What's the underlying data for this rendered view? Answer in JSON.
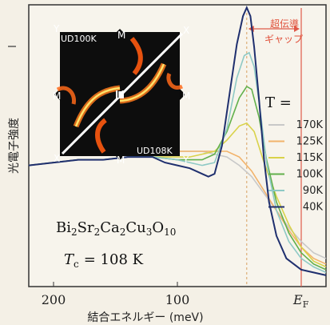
{
  "chart_data": {
    "type": "line",
    "title": "",
    "xlabel": "結合エネルギー (meV)",
    "ylabel": "光電子強度",
    "xlim": [
      220,
      -20
    ],
    "ylim": [
      0,
      1
    ],
    "x_ticks": [
      200,
      100
    ],
    "fermi_label": "E",
    "fermi_sub": "F",
    "fermi_x": 0,
    "gap_note": [
      "超伝導",
      "ギャップ"
    ],
    "legend_title": "T =",
    "material": {
      "parts": [
        [
          "Bi",
          "2"
        ],
        [
          "Sr",
          "2"
        ],
        [
          "Ca",
          "2"
        ],
        [
          "Cu",
          "3"
        ],
        [
          "O",
          "10"
        ]
      ]
    },
    "tc": {
      "sym": "T",
      "sub": "c",
      "value": "= 108 K"
    },
    "inset": {
      "corner_labels": [
        "Y",
        "X",
        "X",
        "Y"
      ],
      "m_labels": [
        "M",
        "M",
        "M",
        "M"
      ],
      "gamma": "Γ",
      "ud_labels": [
        "UD100K",
        "UD108K"
      ]
    },
    "series": [
      {
        "name": "170K",
        "color": "#c8c8c8",
        "points": [
          [
            220,
            0.43
          ],
          [
            200,
            0.44
          ],
          [
            180,
            0.45
          ],
          [
            160,
            0.45
          ],
          [
            140,
            0.46
          ],
          [
            120,
            0.47
          ],
          [
            100,
            0.48
          ],
          [
            90,
            0.48
          ],
          [
            80,
            0.48
          ],
          [
            70,
            0.47
          ],
          [
            60,
            0.46
          ],
          [
            50,
            0.43
          ],
          [
            40,
            0.39
          ],
          [
            30,
            0.33
          ],
          [
            20,
            0.27
          ],
          [
            10,
            0.21
          ],
          [
            0,
            0.16
          ],
          [
            -10,
            0.12
          ],
          [
            -20,
            0.1
          ]
        ]
      },
      {
        "name": "125K",
        "color": "#f2b36b",
        "points": [
          [
            220,
            0.43
          ],
          [
            200,
            0.44
          ],
          [
            180,
            0.45
          ],
          [
            160,
            0.45
          ],
          [
            140,
            0.46
          ],
          [
            120,
            0.47
          ],
          [
            100,
            0.48
          ],
          [
            90,
            0.48
          ],
          [
            80,
            0.48
          ],
          [
            70,
            0.48
          ],
          [
            60,
            0.48
          ],
          [
            50,
            0.46
          ],
          [
            40,
            0.41
          ],
          [
            30,
            0.34
          ],
          [
            20,
            0.27
          ],
          [
            10,
            0.2
          ],
          [
            0,
            0.14
          ],
          [
            -10,
            0.1
          ],
          [
            -20,
            0.08
          ]
        ]
      },
      {
        "name": "115K",
        "color": "#d9d24a",
        "points": [
          [
            220,
            0.43
          ],
          [
            200,
            0.44
          ],
          [
            180,
            0.45
          ],
          [
            160,
            0.45
          ],
          [
            140,
            0.46
          ],
          [
            120,
            0.46
          ],
          [
            100,
            0.46
          ],
          [
            90,
            0.46
          ],
          [
            80,
            0.47
          ],
          [
            70,
            0.48
          ],
          [
            60,
            0.52
          ],
          [
            50,
            0.57
          ],
          [
            44,
            0.58
          ],
          [
            38,
            0.55
          ],
          [
            30,
            0.44
          ],
          [
            20,
            0.32
          ],
          [
            10,
            0.22
          ],
          [
            0,
            0.14
          ],
          [
            -10,
            0.09
          ],
          [
            -20,
            0.07
          ]
        ]
      },
      {
        "name": "100K",
        "color": "#62b04b",
        "points": [
          [
            220,
            0.43
          ],
          [
            200,
            0.44
          ],
          [
            180,
            0.45
          ],
          [
            160,
            0.45
          ],
          [
            140,
            0.46
          ],
          [
            120,
            0.46
          ],
          [
            100,
            0.45
          ],
          [
            90,
            0.45
          ],
          [
            80,
            0.45
          ],
          [
            70,
            0.47
          ],
          [
            60,
            0.55
          ],
          [
            50,
            0.67
          ],
          [
            44,
            0.71
          ],
          [
            40,
            0.7
          ],
          [
            34,
            0.6
          ],
          [
            28,
            0.45
          ],
          [
            20,
            0.3
          ],
          [
            10,
            0.19
          ],
          [
            0,
            0.12
          ],
          [
            -10,
            0.08
          ],
          [
            -20,
            0.06
          ]
        ]
      },
      {
        "name": "90K",
        "color": "#8ec9c5",
        "points": [
          [
            220,
            0.43
          ],
          [
            200,
            0.44
          ],
          [
            180,
            0.45
          ],
          [
            160,
            0.45
          ],
          [
            140,
            0.46
          ],
          [
            120,
            0.46
          ],
          [
            100,
            0.45
          ],
          [
            90,
            0.44
          ],
          [
            80,
            0.43
          ],
          [
            70,
            0.44
          ],
          [
            60,
            0.56
          ],
          [
            52,
            0.74
          ],
          [
            46,
            0.82
          ],
          [
            42,
            0.83
          ],
          [
            38,
            0.78
          ],
          [
            33,
            0.62
          ],
          [
            28,
            0.44
          ],
          [
            20,
            0.27
          ],
          [
            10,
            0.16
          ],
          [
            0,
            0.1
          ],
          [
            -10,
            0.07
          ],
          [
            -20,
            0.05
          ]
        ]
      },
      {
        "name": "40K",
        "color": "#1f2f6e",
        "points": [
          [
            220,
            0.43
          ],
          [
            200,
            0.44
          ],
          [
            180,
            0.45
          ],
          [
            160,
            0.45
          ],
          [
            140,
            0.46
          ],
          [
            120,
            0.46
          ],
          [
            110,
            0.44
          ],
          [
            100,
            0.43
          ],
          [
            90,
            0.42
          ],
          [
            85,
            0.41
          ],
          [
            80,
            0.4
          ],
          [
            75,
            0.39
          ],
          [
            70,
            0.4
          ],
          [
            64,
            0.5
          ],
          [
            58,
            0.68
          ],
          [
            52,
            0.86
          ],
          [
            47,
            0.96
          ],
          [
            44,
            0.99
          ],
          [
            41,
            0.96
          ],
          [
            38,
            0.85
          ],
          [
            34,
            0.66
          ],
          [
            30,
            0.45
          ],
          [
            26,
            0.3
          ],
          [
            20,
            0.18
          ],
          [
            12,
            0.1
          ],
          [
            0,
            0.06
          ],
          [
            -20,
            0.04
          ]
        ]
      }
    ]
  }
}
